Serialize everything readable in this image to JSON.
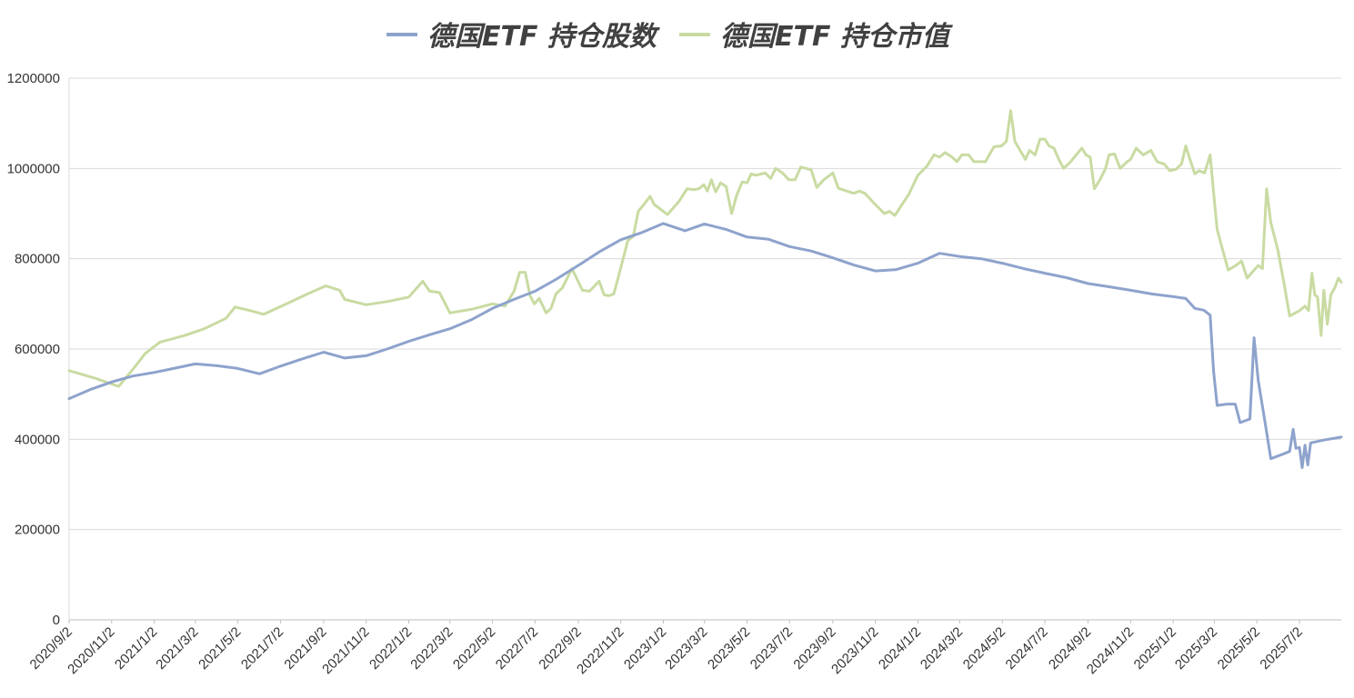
{
  "chart_data": {
    "type": "line",
    "legend": {
      "placement": "top"
    },
    "grid": true,
    "ylim": [
      0,
      1200000
    ],
    "y_ticks": [
      "1200000",
      "1000000",
      "800000",
      "600000",
      "400000",
      "200000",
      "0"
    ],
    "x_tick_labels": [
      "2020/9/2",
      "2020/11/2",
      "2021/1/2",
      "2021/3/2",
      "2021/5/2",
      "2021/7/2",
      "2021/9/2",
      "2021/11/2",
      "2022/1/2",
      "2022/3/2",
      "2022/5/2",
      "2022/7/2",
      "2022/9/2",
      "2022/11/2",
      "2023/1/2",
      "2023/3/2",
      "2023/5/2",
      "2023/7/2",
      "2023/9/2",
      "2023/11/2",
      "2024/1/2",
      "2024/3/2",
      "2024/5/2",
      "2024/7/2",
      "2024/9/2",
      "2024/11/2",
      "2025/1/2",
      "2025/3/2",
      "2025/5/2",
      "2025/7/2"
    ],
    "x_range": [
      "2020-09-02",
      "2025-08-31"
    ],
    "series": [
      {
        "name": "德国ETF 持仓股数",
        "color": "#8ea3cc",
        "points": [
          [
            "2020-09-02",
            490000
          ],
          [
            "2020-10-02",
            510000
          ],
          [
            "2020-11-02",
            527000
          ],
          [
            "2020-12-02",
            540000
          ],
          [
            "2021-01-02",
            548000
          ],
          [
            "2021-02-02",
            558000
          ],
          [
            "2021-03-02",
            567000
          ],
          [
            "2021-04-02",
            563000
          ],
          [
            "2021-05-02",
            557000
          ],
          [
            "2021-06-02",
            545000
          ],
          [
            "2021-07-02",
            562000
          ],
          [
            "2021-08-02",
            578000
          ],
          [
            "2021-09-02",
            593000
          ],
          [
            "2021-10-02",
            580000
          ],
          [
            "2021-11-02",
            585000
          ],
          [
            "2021-12-02",
            600000
          ],
          [
            "2022-01-02",
            617000
          ],
          [
            "2022-02-02",
            632000
          ],
          [
            "2022-03-02",
            645000
          ],
          [
            "2022-04-02",
            665000
          ],
          [
            "2022-05-02",
            690000
          ],
          [
            "2022-06-02",
            710000
          ],
          [
            "2022-07-02",
            728000
          ],
          [
            "2022-08-02",
            755000
          ],
          [
            "2022-09-02",
            785000
          ],
          [
            "2022-10-02",
            815000
          ],
          [
            "2022-11-02",
            842000
          ],
          [
            "2022-12-02",
            858000
          ],
          [
            "2023-01-02",
            878000
          ],
          [
            "2023-02-02",
            862000
          ],
          [
            "2023-03-02",
            877000
          ],
          [
            "2023-04-02",
            865000
          ],
          [
            "2023-05-02",
            848000
          ],
          [
            "2023-06-02",
            843000
          ],
          [
            "2023-07-02",
            827000
          ],
          [
            "2023-08-02",
            817000
          ],
          [
            "2023-09-02",
            802000
          ],
          [
            "2023-10-02",
            786000
          ],
          [
            "2023-11-02",
            773000
          ],
          [
            "2023-12-02",
            776000
          ],
          [
            "2024-01-02",
            790000
          ],
          [
            "2024-02-02",
            812000
          ],
          [
            "2024-03-02",
            805000
          ],
          [
            "2024-04-02",
            800000
          ],
          [
            "2024-05-02",
            790000
          ],
          [
            "2024-06-02",
            778000
          ],
          [
            "2024-07-02",
            768000
          ],
          [
            "2024-08-02",
            758000
          ],
          [
            "2024-09-02",
            745000
          ],
          [
            "2024-10-02",
            738000
          ],
          [
            "2024-11-02",
            730000
          ],
          [
            "2024-12-02",
            722000
          ],
          [
            "2025-01-02",
            716000
          ],
          [
            "2025-01-20",
            712000
          ],
          [
            "2025-02-02",
            690000
          ],
          [
            "2025-02-15",
            686000
          ],
          [
            "2025-02-24",
            675000
          ],
          [
            "2025-03-01",
            550000
          ],
          [
            "2025-03-06",
            475000
          ],
          [
            "2025-03-20",
            478000
          ],
          [
            "2025-04-01",
            478000
          ],
          [
            "2025-04-08",
            437000
          ],
          [
            "2025-04-22",
            445000
          ],
          [
            "2025-04-28",
            625000
          ],
          [
            "2025-05-04",
            530000
          ],
          [
            "2025-05-14",
            435000
          ],
          [
            "2025-05-22",
            357000
          ],
          [
            "2025-06-10",
            368000
          ],
          [
            "2025-06-18",
            373000
          ],
          [
            "2025-06-23",
            422000
          ],
          [
            "2025-06-27",
            380000
          ],
          [
            "2025-07-02",
            382000
          ],
          [
            "2025-07-06",
            337000
          ],
          [
            "2025-07-10",
            387000
          ],
          [
            "2025-07-14",
            343000
          ],
          [
            "2025-07-18",
            392000
          ],
          [
            "2025-08-05",
            398000
          ],
          [
            "2025-08-31",
            405000
          ]
        ]
      },
      {
        "name": "德国ETF 持仓市值",
        "color": "#c9dba2",
        "points": [
          [
            "2020-09-02",
            552000
          ],
          [
            "2020-10-10",
            535000
          ],
          [
            "2020-11-12",
            517000
          ],
          [
            "2020-12-05",
            560000
          ],
          [
            "2020-12-20",
            590000
          ],
          [
            "2021-01-10",
            615000
          ],
          [
            "2021-02-15",
            630000
          ],
          [
            "2021-03-15",
            645000
          ],
          [
            "2021-04-15",
            668000
          ],
          [
            "2021-04-28",
            693000
          ],
          [
            "2021-05-20",
            685000
          ],
          [
            "2021-06-08",
            677000
          ],
          [
            "2021-07-08",
            698000
          ],
          [
            "2021-08-10",
            722000
          ],
          [
            "2021-09-05",
            740000
          ],
          [
            "2021-09-25",
            730000
          ],
          [
            "2021-10-02",
            710000
          ],
          [
            "2021-11-02",
            698000
          ],
          [
            "2021-12-02",
            705000
          ],
          [
            "2022-01-02",
            715000
          ],
          [
            "2022-01-22",
            750000
          ],
          [
            "2022-02-01",
            728000
          ],
          [
            "2022-02-15",
            725000
          ],
          [
            "2022-03-02",
            680000
          ],
          [
            "2022-04-02",
            688000
          ],
          [
            "2022-05-02",
            700000
          ],
          [
            "2022-05-20",
            695000
          ],
          [
            "2022-06-02",
            728000
          ],
          [
            "2022-06-10",
            770000
          ],
          [
            "2022-06-18",
            770000
          ],
          [
            "2022-06-25",
            718000
          ],
          [
            "2022-07-01",
            700000
          ],
          [
            "2022-07-08",
            712000
          ],
          [
            "2022-07-18",
            680000
          ],
          [
            "2022-07-25",
            690000
          ],
          [
            "2022-08-01",
            722000
          ],
          [
            "2022-08-10",
            735000
          ],
          [
            "2022-08-24",
            778000
          ],
          [
            "2022-09-08",
            730000
          ],
          [
            "2022-09-18",
            728000
          ],
          [
            "2022-10-02",
            750000
          ],
          [
            "2022-10-09",
            720000
          ],
          [
            "2022-10-16",
            718000
          ],
          [
            "2022-10-23",
            722000
          ],
          [
            "2022-11-02",
            780000
          ],
          [
            "2022-11-12",
            840000
          ],
          [
            "2022-11-20",
            850000
          ],
          [
            "2022-11-27",
            905000
          ],
          [
            "2022-12-04",
            918000
          ],
          [
            "2022-12-14",
            938000
          ],
          [
            "2022-12-20",
            920000
          ],
          [
            "2023-01-08",
            898000
          ],
          [
            "2023-01-25",
            928000
          ],
          [
            "2023-02-05",
            955000
          ],
          [
            "2023-02-15",
            953000
          ],
          [
            "2023-02-22",
            955000
          ],
          [
            "2023-03-01",
            964000
          ],
          [
            "2023-03-06",
            950000
          ],
          [
            "2023-03-12",
            975000
          ],
          [
            "2023-03-18",
            948000
          ],
          [
            "2023-03-25",
            968000
          ],
          [
            "2023-04-02",
            960000
          ],
          [
            "2023-04-10",
            900000
          ],
          [
            "2023-04-17",
            940000
          ],
          [
            "2023-04-25",
            970000
          ],
          [
            "2023-05-02",
            968000
          ],
          [
            "2023-05-08",
            988000
          ],
          [
            "2023-05-15",
            985000
          ],
          [
            "2023-05-28",
            990000
          ],
          [
            "2023-06-05",
            978000
          ],
          [
            "2023-06-12",
            1000000
          ],
          [
            "2023-06-22",
            990000
          ],
          [
            "2023-07-01",
            975000
          ],
          [
            "2023-07-10",
            975000
          ],
          [
            "2023-07-18",
            1003000
          ],
          [
            "2023-08-02",
            997000
          ],
          [
            "2023-08-10",
            958000
          ],
          [
            "2023-08-20",
            975000
          ],
          [
            "2023-09-02",
            990000
          ],
          [
            "2023-09-10",
            956000
          ],
          [
            "2023-10-02",
            945000
          ],
          [
            "2023-10-10",
            950000
          ],
          [
            "2023-10-18",
            945000
          ],
          [
            "2023-11-02",
            920000
          ],
          [
            "2023-11-15",
            900000
          ],
          [
            "2023-11-22",
            905000
          ],
          [
            "2023-11-30",
            896000
          ],
          [
            "2023-12-20",
            943000
          ],
          [
            "2024-01-02",
            985000
          ],
          [
            "2024-01-15",
            1005000
          ],
          [
            "2024-01-25",
            1030000
          ],
          [
            "2024-02-02",
            1025000
          ],
          [
            "2024-02-10",
            1035000
          ],
          [
            "2024-02-20",
            1025000
          ],
          [
            "2024-02-27",
            1015000
          ],
          [
            "2024-03-05",
            1030000
          ],
          [
            "2024-03-15",
            1030000
          ],
          [
            "2024-03-22",
            1015000
          ],
          [
            "2024-04-08",
            1015000
          ],
          [
            "2024-04-20",
            1048000
          ],
          [
            "2024-05-01",
            1050000
          ],
          [
            "2024-05-08",
            1060000
          ],
          [
            "2024-05-14",
            1128000
          ],
          [
            "2024-05-20",
            1060000
          ],
          [
            "2024-06-04",
            1020000
          ],
          [
            "2024-06-10",
            1040000
          ],
          [
            "2024-06-18",
            1030000
          ],
          [
            "2024-06-25",
            1065000
          ],
          [
            "2024-07-02",
            1065000
          ],
          [
            "2024-07-08",
            1050000
          ],
          [
            "2024-07-15",
            1045000
          ],
          [
            "2024-07-22",
            1020000
          ],
          [
            "2024-07-29",
            1000000
          ],
          [
            "2024-08-08",
            1015000
          ],
          [
            "2024-08-16",
            1030000
          ],
          [
            "2024-08-24",
            1045000
          ],
          [
            "2024-08-30",
            1030000
          ],
          [
            "2024-09-05",
            1025000
          ],
          [
            "2024-09-11",
            955000
          ],
          [
            "2024-09-19",
            975000
          ],
          [
            "2024-09-27",
            1000000
          ],
          [
            "2024-10-02",
            1030000
          ],
          [
            "2024-10-10",
            1032000
          ],
          [
            "2024-10-18",
            1000000
          ],
          [
            "2024-10-28",
            1015000
          ],
          [
            "2024-11-02",
            1020000
          ],
          [
            "2024-11-10",
            1045000
          ],
          [
            "2024-11-20",
            1030000
          ],
          [
            "2024-12-01",
            1040000
          ],
          [
            "2024-12-10",
            1015000
          ],
          [
            "2024-12-20",
            1010000
          ],
          [
            "2024-12-28",
            995000
          ],
          [
            "2025-01-06",
            998000
          ],
          [
            "2025-01-14",
            1010000
          ],
          [
            "2025-01-20",
            1050000
          ],
          [
            "2025-01-26",
            1020000
          ],
          [
            "2025-02-02",
            988000
          ],
          [
            "2025-02-08",
            995000
          ],
          [
            "2025-02-16",
            990000
          ],
          [
            "2025-02-24",
            1030000
          ],
          [
            "2025-03-02",
            930000
          ],
          [
            "2025-03-06",
            865000
          ],
          [
            "2025-03-13",
            825000
          ],
          [
            "2025-03-22",
            775000
          ],
          [
            "2025-04-02",
            785000
          ],
          [
            "2025-04-10",
            795000
          ],
          [
            "2025-04-18",
            757000
          ],
          [
            "2025-04-28",
            775000
          ],
          [
            "2025-05-04",
            785000
          ],
          [
            "2025-05-10",
            778000
          ],
          [
            "2025-05-16",
            955000
          ],
          [
            "2025-05-22",
            880000
          ],
          [
            "2025-06-01",
            820000
          ],
          [
            "2025-06-10",
            745000
          ],
          [
            "2025-06-18",
            673000
          ],
          [
            "2025-07-02",
            685000
          ],
          [
            "2025-07-10",
            695000
          ],
          [
            "2025-07-15",
            685000
          ],
          [
            "2025-07-20",
            768000
          ],
          [
            "2025-07-24",
            720000
          ],
          [
            "2025-07-28",
            715000
          ],
          [
            "2025-08-02",
            630000
          ],
          [
            "2025-08-06",
            730000
          ],
          [
            "2025-08-11",
            655000
          ],
          [
            "2025-08-16",
            720000
          ],
          [
            "2025-08-22",
            737000
          ],
          [
            "2025-08-27",
            757000
          ],
          [
            "2025-08-31",
            748000
          ]
        ]
      }
    ]
  }
}
